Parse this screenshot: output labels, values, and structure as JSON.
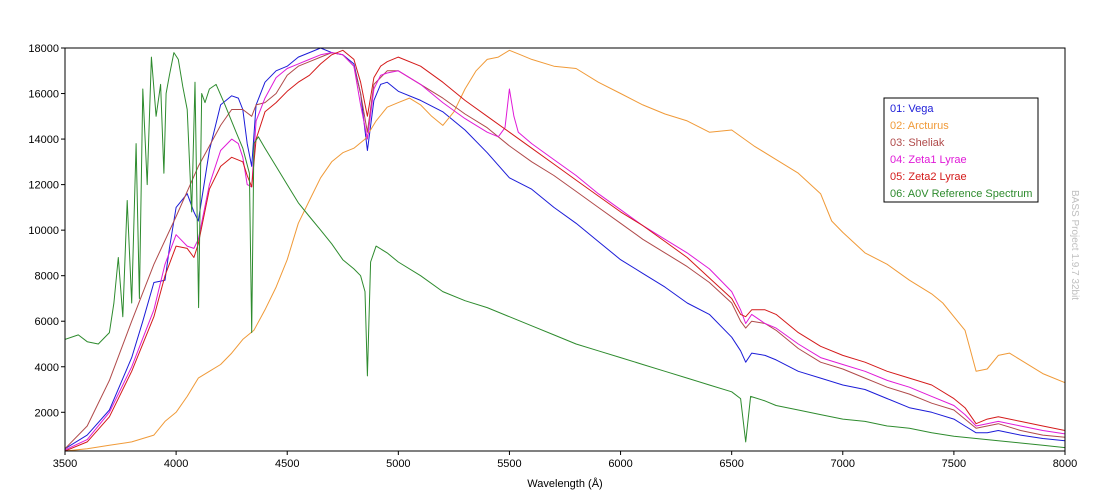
{
  "chart_data": {
    "type": "line",
    "xlabel": "Wavelength (Å)",
    "xlim": [
      3500,
      8000
    ],
    "ylim": [
      300,
      18000
    ],
    "xticks": [
      3500,
      4000,
      4500,
      5000,
      5500,
      6000,
      6500,
      7000,
      7500,
      8000
    ],
    "yticks": [
      2000,
      4000,
      6000,
      8000,
      10000,
      12000,
      14000,
      16000,
      18000
    ],
    "grid": false,
    "legend_position": "right",
    "watermark": "BASS Project 1.9.7  32bit",
    "series": [
      {
        "name": "01: Vega",
        "color": "#1c1cd8",
        "x": [
          3500,
          3600,
          3700,
          3800,
          3850,
          3900,
          3950,
          3970,
          4000,
          4050,
          4080,
          4100,
          4150,
          4200,
          4250,
          4280,
          4300,
          4320,
          4340,
          4360,
          4400,
          4450,
          4500,
          4550,
          4600,
          4650,
          4700,
          4750,
          4800,
          4830,
          4861,
          4890,
          4920,
          4950,
          5000,
          5100,
          5200,
          5300,
          5400,
          5500,
          5600,
          5700,
          5800,
          5900,
          6000,
          6100,
          6200,
          6300,
          6400,
          6500,
          6540,
          6563,
          6590,
          6650,
          6700,
          6800,
          6900,
          7000,
          7100,
          7200,
          7300,
          7400,
          7500,
          7550,
          7600,
          7650,
          7700,
          7800,
          7900,
          8000
        ],
        "values": [
          400,
          1000,
          2100,
          4400,
          6000,
          7700,
          7800,
          9200,
          11000,
          11600,
          10800,
          10400,
          13500,
          15500,
          15900,
          15800,
          15300,
          13800,
          12800,
          15500,
          16500,
          17000,
          17200,
          17600,
          17800,
          18000,
          17800,
          17700,
          17300,
          16000,
          13500,
          15700,
          16400,
          16500,
          16100,
          15700,
          15200,
          14400,
          13400,
          12300,
          11800,
          11000,
          10300,
          9500,
          8700,
          8100,
          7500,
          6800,
          6300,
          5300,
          4700,
          4200,
          4600,
          4500,
          4300,
          3800,
          3500,
          3200,
          3000,
          2600,
          2200,
          2000,
          1700,
          1400,
          1100,
          1100,
          1200,
          1000,
          850,
          750
        ]
      },
      {
        "name": "02: Arcturus",
        "color": "#f09a38",
        "x": [
          3500,
          3600,
          3700,
          3800,
          3900,
          3950,
          4000,
          4050,
          4100,
          4150,
          4200,
          4250,
          4300,
          4350,
          4400,
          4450,
          4500,
          4550,
          4600,
          4650,
          4700,
          4750,
          4800,
          4850,
          4900,
          4950,
          5000,
          5050,
          5100,
          5150,
          5200,
          5250,
          5300,
          5350,
          5400,
          5450,
          5500,
          5550,
          5600,
          5700,
          5800,
          5900,
          6000,
          6100,
          6200,
          6300,
          6400,
          6500,
          6600,
          6700,
          6800,
          6900,
          6950,
          7000,
          7100,
          7200,
          7300,
          7400,
          7450,
          7500,
          7550,
          7600,
          7650,
          7700,
          7750,
          7800,
          7900,
          8000
        ],
        "values": [
          300,
          400,
          550,
          700,
          1000,
          1600,
          2000,
          2700,
          3500,
          3800,
          4100,
          4600,
          5200,
          5600,
          6500,
          7500,
          8700,
          10300,
          11300,
          12300,
          13000,
          13400,
          13600,
          14000,
          14800,
          15400,
          15600,
          15800,
          15500,
          15000,
          14600,
          15200,
          16200,
          17000,
          17500,
          17600,
          17900,
          17700,
          17500,
          17200,
          17100,
          16500,
          16000,
          15500,
          15100,
          14800,
          14300,
          14400,
          13700,
          13100,
          12500,
          11600,
          10400,
          9900,
          9000,
          8500,
          7800,
          7200,
          6800,
          6200,
          5600,
          3800,
          3900,
          4500,
          4600,
          4300,
          3700,
          3300
        ]
      },
      {
        "name": "03: Sheliak",
        "color": "#b04a4a",
        "x": [
          3500,
          3600,
          3700,
          3800,
          3900,
          4000,
          4100,
          4200,
          4250,
          4300,
          4340,
          4360,
          4400,
          4450,
          4500,
          4550,
          4600,
          4650,
          4700,
          4750,
          4800,
          4830,
          4861,
          4890,
          4950,
          5000,
          5100,
          5200,
          5300,
          5400,
          5500,
          5600,
          5700,
          5800,
          5900,
          6000,
          6100,
          6200,
          6300,
          6400,
          6500,
          6540,
          6563,
          6590,
          6650,
          6700,
          6800,
          6900,
          7000,
          7100,
          7200,
          7300,
          7400,
          7500,
          7550,
          7600,
          7650,
          7700,
          7800,
          7900,
          8000
        ],
        "values": [
          400,
          1400,
          3400,
          6000,
          8500,
          10600,
          12800,
          14600,
          15300,
          15300,
          15000,
          15500,
          15600,
          16000,
          16800,
          17200,
          17400,
          17600,
          17800,
          17700,
          17200,
          16000,
          14300,
          16400,
          17000,
          17000,
          16400,
          15800,
          15100,
          14500,
          13700,
          13000,
          12400,
          11700,
          11000,
          10300,
          9600,
          9000,
          8400,
          7700,
          6800,
          6000,
          5700,
          6000,
          5900,
          5600,
          4800,
          4200,
          3900,
          3500,
          3100,
          2800,
          2400,
          2100,
          1700,
          1300,
          1400,
          1500,
          1200,
          1000,
          900
        ]
      },
      {
        "name": "04: Zeta1 Lyrae",
        "color": "#e01ad8",
        "x": [
          3500,
          3600,
          3700,
          3800,
          3900,
          3950,
          4000,
          4050,
          4080,
          4100,
          4150,
          4200,
          4250,
          4280,
          4300,
          4320,
          4340,
          4360,
          4400,
          4450,
          4500,
          4550,
          4600,
          4650,
          4700,
          4750,
          4800,
          4830,
          4861,
          4890,
          4920,
          4950,
          5000,
          5100,
          5200,
          5300,
          5400,
          5450,
          5480,
          5500,
          5520,
          5540,
          5600,
          5700,
          5800,
          5900,
          6000,
          6100,
          6200,
          6300,
          6400,
          6500,
          6540,
          6563,
          6590,
          6650,
          6700,
          6800,
          6900,
          7000,
          7100,
          7200,
          7300,
          7400,
          7500,
          7550,
          7600,
          7650,
          7700,
          7800,
          7900,
          8000
        ],
        "values": [
          350,
          800,
          2000,
          4000,
          6500,
          8500,
          9800,
          9300,
          9200,
          9600,
          12000,
          13500,
          14000,
          13800,
          13200,
          12000,
          11900,
          14800,
          15800,
          16700,
          17100,
          17300,
          17500,
          17700,
          17800,
          17700,
          17200,
          15500,
          14000,
          16200,
          16800,
          16900,
          17000,
          16400,
          15600,
          14900,
          14300,
          14100,
          14500,
          16200,
          15000,
          14300,
          13800,
          13100,
          12400,
          11600,
          10900,
          10200,
          9600,
          9000,
          8300,
          7300,
          6500,
          5900,
          6300,
          5900,
          5700,
          5000,
          4400,
          4100,
          3800,
          3400,
          3100,
          2700,
          2300,
          1900,
          1400,
          1500,
          1600,
          1400,
          1200,
          1050
        ]
      },
      {
        "name": "05: Zeta2 Lyrae",
        "color": "#d41a1a",
        "x": [
          3500,
          3600,
          3700,
          3800,
          3900,
          3950,
          4000,
          4050,
          4080,
          4100,
          4150,
          4200,
          4250,
          4300,
          4320,
          4340,
          4360,
          4400,
          4450,
          4500,
          4550,
          4600,
          4650,
          4700,
          4750,
          4800,
          4830,
          4861,
          4890,
          4920,
          4950,
          5000,
          5100,
          5200,
          5300,
          5400,
          5500,
          5600,
          5700,
          5800,
          5900,
          6000,
          6100,
          6200,
          6300,
          6400,
          6500,
          6540,
          6563,
          6590,
          6650,
          6700,
          6800,
          6900,
          7000,
          7100,
          7200,
          7300,
          7400,
          7500,
          7550,
          7600,
          7650,
          7700,
          7800,
          7900,
          8000
        ],
        "values": [
          300,
          700,
          1800,
          3800,
          6200,
          8000,
          9300,
          9200,
          8800,
          9400,
          11800,
          12800,
          13200,
          13000,
          12400,
          11900,
          14000,
          15200,
          15600,
          16100,
          16500,
          16800,
          17300,
          17700,
          17900,
          17500,
          16500,
          15000,
          16700,
          17200,
          17400,
          17600,
          17200,
          16500,
          15700,
          15000,
          14300,
          13600,
          12900,
          12200,
          11500,
          10800,
          10200,
          9500,
          8800,
          7900,
          7000,
          6300,
          6200,
          6500,
          6500,
          6300,
          5500,
          4900,
          4500,
          4200,
          3800,
          3500,
          3200,
          2600,
          2200,
          1500,
          1700,
          1800,
          1600,
          1400,
          1200
        ]
      },
      {
        "name": "06: A0V Reference Spectrum",
        "color": "#2e8b2e",
        "x": [
          3500,
          3560,
          3600,
          3650,
          3700,
          3720,
          3740,
          3760,
          3780,
          3800,
          3820,
          3835,
          3850,
          3870,
          3889,
          3910,
          3930,
          3945,
          3955,
          3970,
          3990,
          4010,
          4030,
          4050,
          4070,
          4085,
          4101,
          4115,
          4130,
          4150,
          4180,
          4220,
          4270,
          4300,
          4330,
          4340,
          4350,
          4370,
          4400,
          4450,
          4500,
          4550,
          4600,
          4650,
          4700,
          4750,
          4800,
          4830,
          4850,
          4861,
          4875,
          4900,
          4950,
          5000,
          5100,
          5200,
          5300,
          5400,
          5500,
          5600,
          5700,
          5800,
          5900,
          6000,
          6100,
          6200,
          6300,
          6400,
          6500,
          6540,
          6563,
          6585,
          6650,
          6700,
          6800,
          6900,
          7000,
          7100,
          7200,
          7300,
          7400,
          7500,
          7600,
          7700,
          7800,
          7900,
          8000
        ],
        "values": [
          5200,
          5400,
          5100,
          5000,
          5500,
          6800,
          8800,
          6200,
          11300,
          6800,
          13800,
          7000,
          16200,
          12000,
          17600,
          15000,
          16400,
          12500,
          16000,
          16800,
          17800,
          17500,
          16300,
          15300,
          10800,
          16500,
          6600,
          16000,
          15600,
          16200,
          16400,
          15500,
          14300,
          13600,
          12500,
          5500,
          13800,
          14100,
          13600,
          12800,
          12000,
          11200,
          10600,
          10000,
          9400,
          8700,
          8300,
          8000,
          7300,
          3600,
          8600,
          9300,
          9000,
          8600,
          8000,
          7300,
          6900,
          6600,
          6200,
          5800,
          5400,
          5000,
          4700,
          4400,
          4100,
          3800,
          3500,
          3200,
          2900,
          2600,
          700,
          2700,
          2500,
          2300,
          2100,
          1900,
          1700,
          1600,
          1400,
          1300,
          1100,
          950,
          850,
          750,
          650,
          550,
          450
        ]
      }
    ]
  }
}
